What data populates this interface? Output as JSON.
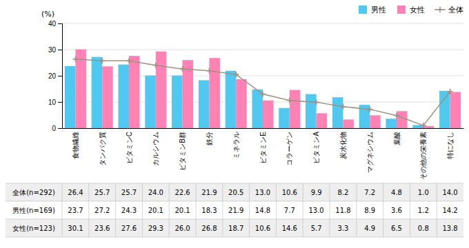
{
  "chart_data": {
    "type": "bar",
    "categories": [
      "食物繊維",
      "タンパク質",
      "ビタミンC",
      "カルシウム",
      "ビタミンB群",
      "鉄分",
      "ミネラル",
      "ビタミンE",
      "コラーゲン",
      "ビタミンA",
      "炭水化物",
      "マグネシウム",
      "葉酸",
      "その他の栄養素",
      "特になし"
    ],
    "series": [
      {
        "name": "男性",
        "color": "#50C8F0",
        "values": [
          23.7,
          27.2,
          24.3,
          20.1,
          20.1,
          18.3,
          21.9,
          14.8,
          7.7,
          13.0,
          11.8,
          8.9,
          3.6,
          1.2,
          14.2
        ]
      },
      {
        "name": "女性",
        "color": "#FF82B4",
        "values": [
          30.1,
          23.6,
          27.6,
          29.3,
          26.0,
          26.8,
          18.7,
          10.6,
          14.6,
          5.7,
          3.3,
          4.9,
          6.5,
          0.8,
          13.8
        ]
      },
      {
        "name": "全体",
        "type": "line",
        "marker": "plus",
        "color": "#A09080",
        "values": [
          26.4,
          25.7,
          25.7,
          24.0,
          22.6,
          21.9,
          20.5,
          13.0,
          10.6,
          9.9,
          8.2,
          7.2,
          4.8,
          1.0,
          14.0
        ]
      }
    ],
    "ylabel": "(%)",
    "ylim": [
      0,
      40
    ],
    "yticks": [
      0,
      10,
      20,
      30,
      40
    ],
    "grid": true,
    "legend": "upper right",
    "table": {
      "rows": [
        {
          "label": "全体(n=292)",
          "values": [
            26.4,
            25.7,
            25.7,
            24.0,
            22.6,
            21.9,
            20.5,
            13.0,
            10.6,
            9.9,
            8.2,
            7.2,
            4.8,
            1.0,
            14.0
          ],
          "value_labels": [
            "26.4",
            "25.7",
            "25.7",
            "24.0",
            "22.6",
            "21.9",
            "20.5",
            "13.0",
            "10.6",
            "9.9",
            "8.2",
            "7.2",
            "4.8",
            "1.0",
            "14.0"
          ]
        },
        {
          "label": "男性(n=169)",
          "values": [
            23.7,
            27.2,
            24.3,
            20.1,
            20.1,
            18.3,
            21.9,
            14.8,
            7.7,
            13.0,
            11.8,
            8.9,
            3.6,
            1.2,
            14.2
          ],
          "value_labels": [
            "23.7",
            "27.2",
            "24.3",
            "20.1",
            "20.1",
            "18.3",
            "21.9",
            "14.8",
            "7.7",
            "13.0",
            "11.8",
            "8.9",
            "3.6",
            "1.2",
            "14.2"
          ]
        },
        {
          "label": "女性(n=123)",
          "values": [
            30.1,
            23.6,
            27.6,
            29.3,
            26.0,
            26.8,
            18.7,
            10.6,
            14.6,
            5.7,
            3.3,
            4.9,
            6.5,
            0.8,
            13.8
          ],
          "value_labels": [
            "30.1",
            "23.6",
            "27.6",
            "29.3",
            "26.0",
            "26.8",
            "18.7",
            "10.6",
            "14.6",
            "5.7",
            "3.3",
            "4.9",
            "6.5",
            "0.8",
            "13.8"
          ]
        }
      ]
    }
  }
}
